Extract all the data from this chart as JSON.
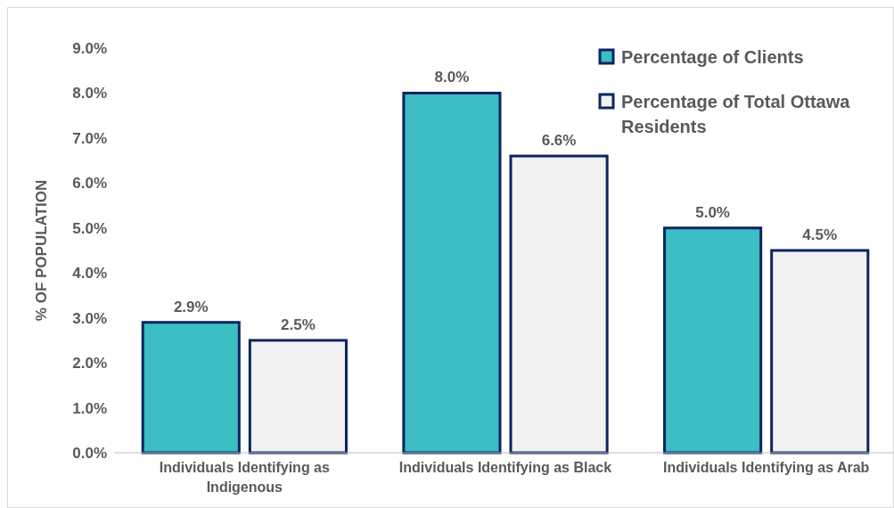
{
  "chart_data": {
    "type": "bar",
    "ylabel": "% OF POPULATION",
    "categories": [
      "Individuals Identifying as Indigenous",
      "Individuals Identifying as Black",
      "Individuals Identifying as Arab"
    ],
    "series": [
      {
        "name": "Percentage of Clients",
        "color": "#3dbdc4",
        "values": [
          2.9,
          8.0,
          5.0
        ],
        "value_labels": [
          "2.9%",
          "8.0%",
          "5.0%"
        ]
      },
      {
        "name": "Percentage of Total Ottawa Residents",
        "color": "#f2f2f2",
        "values": [
          2.5,
          6.6,
          4.5
        ],
        "value_labels": [
          "2.5%",
          "6.6%",
          "4.5%"
        ]
      }
    ],
    "ylim": [
      0,
      9
    ],
    "yticks": [
      {
        "value": 0,
        "label": "0.0%"
      },
      {
        "value": 1,
        "label": "1.0%"
      },
      {
        "value": 2,
        "label": "2.0%"
      },
      {
        "value": 3,
        "label": "3.0%"
      },
      {
        "value": 4,
        "label": "4.0%"
      },
      {
        "value": 5,
        "label": "5.0%"
      },
      {
        "value": 6,
        "label": "6.0%"
      },
      {
        "value": 7,
        "label": "7.0%"
      },
      {
        "value": 8,
        "label": "8.0%"
      },
      {
        "value": 9,
        "label": "9.0%"
      }
    ],
    "legend": "top right"
  }
}
